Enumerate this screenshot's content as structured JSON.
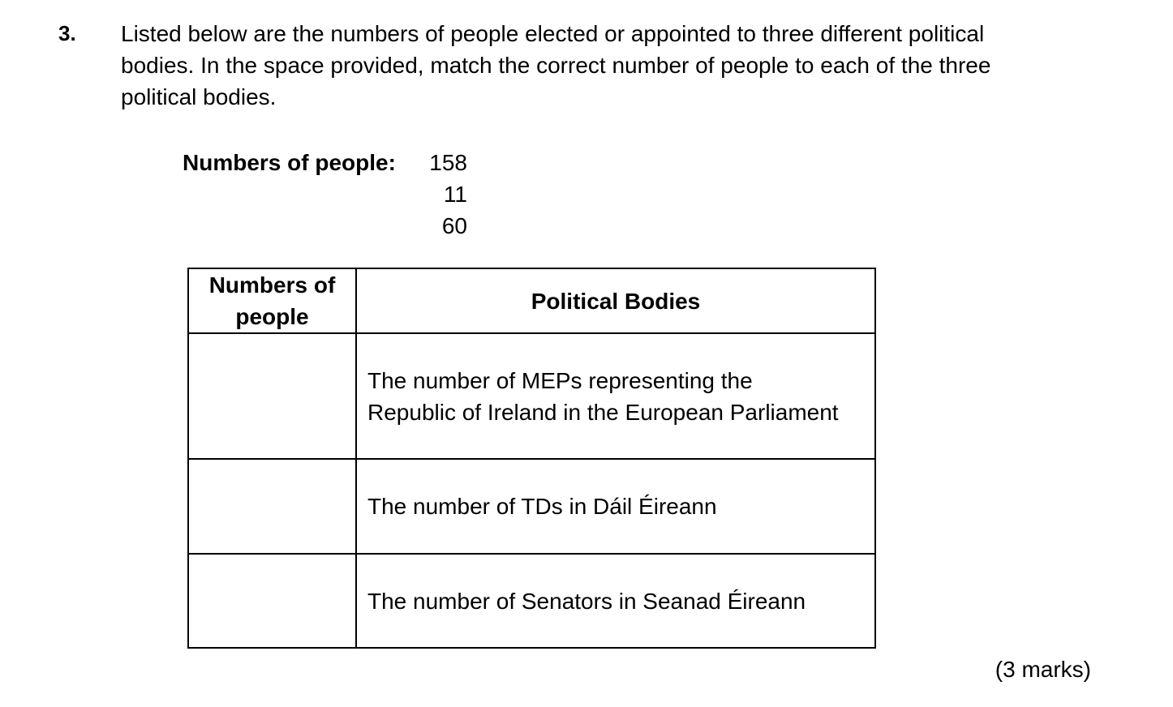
{
  "question": {
    "number": "3.",
    "lines": [
      "Listed below are the numbers of people elected or appointed to three different political",
      "bodies. In the space provided, match the correct number of people to each of the three",
      "political bodies."
    ]
  },
  "numbers": {
    "label": "Numbers of people:",
    "values": [
      "158",
      "11",
      "60"
    ]
  },
  "table": {
    "headers": {
      "numbers": "Numbers of people",
      "bodies": "Political Bodies"
    },
    "rows": [
      {
        "answer": "",
        "body_lines": [
          "The number of MEPs representing the",
          "Republic of Ireland in the European Parliament"
        ]
      },
      {
        "answer": "",
        "body_lines": [
          "The number of TDs in Dáil Éireann"
        ]
      },
      {
        "answer": "",
        "body_lines": [
          "The number of Senators in Seanad Éireann"
        ]
      }
    ]
  },
  "marks": "(3 marks)"
}
